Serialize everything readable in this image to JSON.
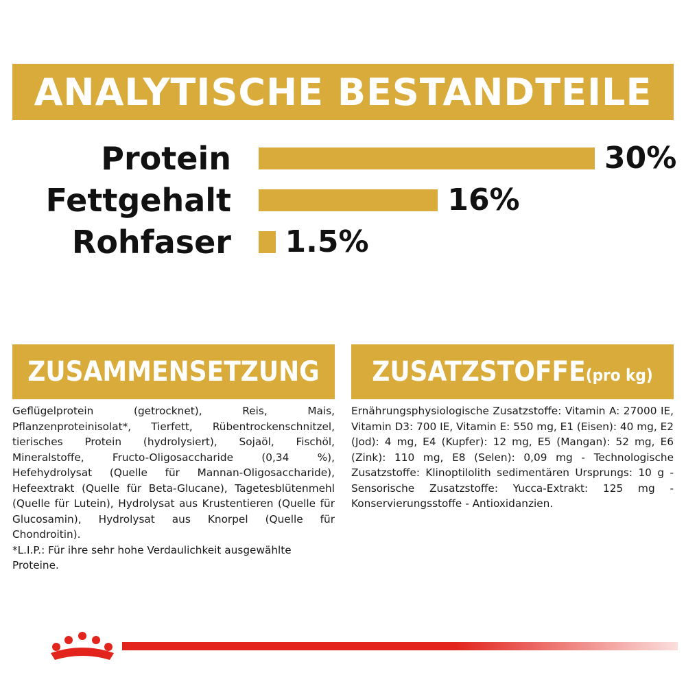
{
  "header": {
    "title": "ANALYTISCHE BESTANDTEILE"
  },
  "nutrients": [
    {
      "label": "Protein",
      "value_text": "30%",
      "value": 30
    },
    {
      "label": "Fettgehalt",
      "value_text": "16%",
      "value": 16
    },
    {
      "label": "Rohfaser",
      "value_text": "1.5%",
      "value": 1.5
    }
  ],
  "composition": {
    "title": "ZUSAMMENSETZUNG",
    "text": "Geflügelprotein (getrocknet), Reis, Mais, Pflanzenproteinisolat*, Tierfett, Rübentrockenschnitzel, tierisches Protein (hydrolysiert), Sojaöl, Fischöl, Mineralstoffe, Fructo-Oligosaccharide (0,34 %), Hefehydrolysat (Quelle für Mannan-Oligosaccharide), Hefeextrakt (Quelle für Beta-Glucane), Tagetesblütenmehl (Quelle für Lutein), Hydrolysat aus Krustentieren (Quelle für Glucosamin), Hydrolysat aus Knorpel (Quelle für Chondroitin).",
    "footnote": "*L.I.P.: Für ihre sehr hohe Verdaulichkeit ausgewählte Proteine."
  },
  "additives": {
    "title": "ZUSATZSTOFFE",
    "unit": "(pro kg)",
    "text": "Ernährungsphysiologische Zusatzstoffe: Vitamin A: 27000 IE, Vitamin D3: 700 IE, Vitamin E: 550 mg, E1 (Eisen): 40 mg, E2 (Jod): 4 mg, E4 (Kupfer): 12 mg, E5 (Mangan): 52 mg, E6 (Zink): 110 mg, E8 (Selen): 0,09 mg - Technologische Zusatzstoffe: Klinoptilolith sedimentären Ursprungs: 10 g - Sensorische Zusatzstoffe: Yucca-Extrakt: 125 mg - Konservierungsstoffe - Antioxidanzien."
  },
  "colors": {
    "accent": "#d8ab3a",
    "brand_red": "#e2241d"
  },
  "icons": {
    "logo": "royal-crown-icon"
  }
}
